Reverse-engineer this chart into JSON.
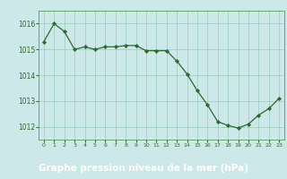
{
  "x": [
    0,
    1,
    2,
    3,
    4,
    5,
    6,
    7,
    8,
    9,
    10,
    11,
    12,
    13,
    14,
    15,
    16,
    17,
    18,
    19,
    20,
    21,
    22,
    23
  ],
  "y": [
    1015.3,
    1016.0,
    1015.7,
    1015.0,
    1015.1,
    1015.0,
    1015.1,
    1015.1,
    1015.15,
    1015.15,
    1014.95,
    1014.95,
    1014.95,
    1014.55,
    1014.05,
    1013.4,
    1012.85,
    1012.2,
    1012.05,
    1011.95,
    1012.1,
    1012.45,
    1012.7,
    1013.1
  ],
  "line_color": "#2d6a2d",
  "marker_color": "#2d6a2d",
  "bg_color": "#cce8e8",
  "grid_color": "#99ccbb",
  "xlabel": "Graphe pression niveau de la mer (hPa)",
  "xlabel_fontsize": 7.5,
  "ylabel_ticks": [
    1012,
    1013,
    1014,
    1015,
    1016
  ],
  "xlim": [
    -0.5,
    23.5
  ],
  "ylim": [
    1011.5,
    1016.5
  ],
  "xtick_labels": [
    "0",
    "1",
    "2",
    "3",
    "4",
    "5",
    "6",
    "7",
    "8",
    "9",
    "10",
    "11",
    "12",
    "13",
    "14",
    "15",
    "16",
    "17",
    "18",
    "19",
    "20",
    "21",
    "22",
    "23"
  ],
  "bottom_bar_color": "#2d6a2d",
  "bottom_bar_text_color": "#ffffff",
  "tick_color": "#2d6a2d",
  "border_color": "#5a9a5a"
}
